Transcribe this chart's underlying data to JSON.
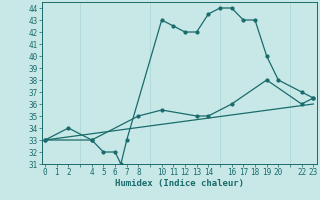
{
  "xlabel": "Humidex (Indice chaleur)",
  "bg_color": "#c8e8e8",
  "grid_color": "#b0d8d8",
  "line_color": "#1a6b6b",
  "ylim": [
    31,
    44.5
  ],
  "xlim": [
    -0.3,
    23.3
  ],
  "yticks": [
    31,
    32,
    33,
    34,
    35,
    36,
    37,
    38,
    39,
    40,
    41,
    42,
    43,
    44
  ],
  "xticks": [
    0,
    1,
    2,
    4,
    5,
    6,
    7,
    8,
    10,
    11,
    12,
    13,
    14,
    16,
    17,
    18,
    19,
    20,
    22,
    23
  ],
  "line1_x": [
    0,
    2,
    4,
    5,
    6,
    6.5,
    7,
    10,
    11,
    12,
    13,
    14,
    15,
    16,
    17,
    18,
    19,
    20,
    22,
    23
  ],
  "line1_y": [
    33,
    34,
    33,
    32,
    32,
    31,
    33,
    43,
    42.5,
    42,
    42,
    43.5,
    44,
    44,
    43,
    43,
    40,
    38,
    37,
    36.5
  ],
  "line2_x": [
    0,
    4,
    8,
    10,
    13,
    14,
    16,
    19,
    22,
    23
  ],
  "line2_y": [
    33,
    33,
    35,
    35.5,
    35,
    35,
    36,
    38,
    36,
    36.5
  ],
  "line3_x": [
    0,
    23
  ],
  "line3_y": [
    33,
    36
  ],
  "marker_size": 2.0,
  "line_width": 0.9
}
